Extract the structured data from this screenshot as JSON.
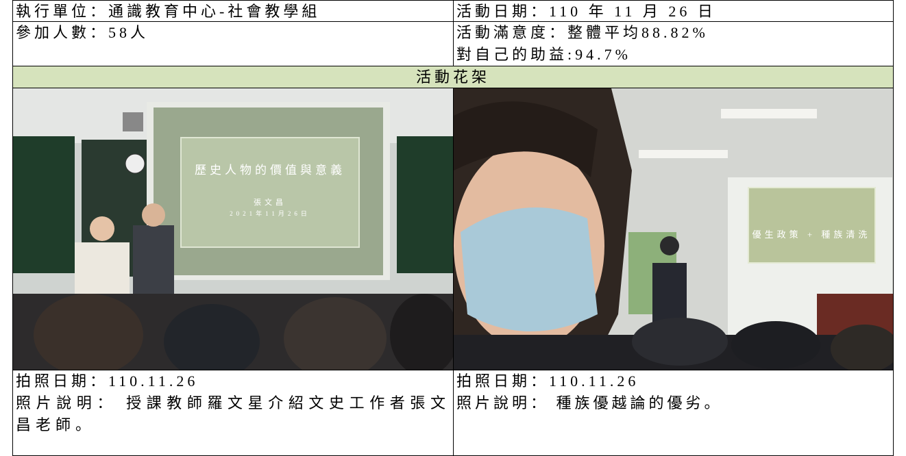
{
  "info": {
    "unit": "執行單位：通識教育中心-社會教學組",
    "date": "活動日期：110 年 11 月 26 日",
    "participants": "參加人數：58人",
    "satisfaction": "活動滿意度：整體平均88.82%",
    "benefit": "對自己的助益:94.7%"
  },
  "section_title": "活動花架",
  "photos": [
    {
      "slide_title": "歷史人物的價值與意義",
      "slide_author": "張文昌",
      "slide_date": "2021年11月26日",
      "date": "拍照日期：110.11.26",
      "caption": "照片說明： 授課教師羅文星介紹文史工作者張文昌老師。"
    },
    {
      "slide_text": "優生政策 + 種族清洗",
      "date": "拍照日期：110.11.26",
      "caption": "照片說明： 種族優越論的優劣。"
    }
  ]
}
